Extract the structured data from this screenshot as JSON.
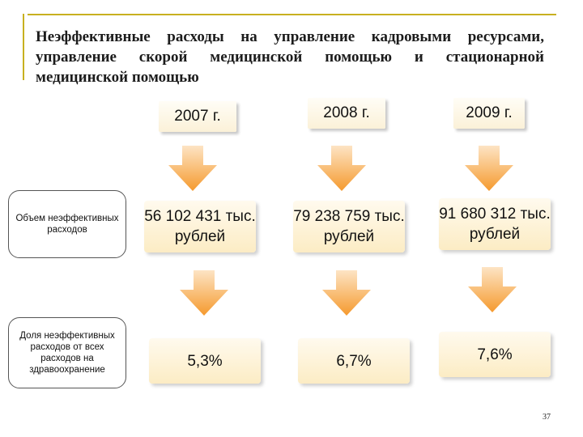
{
  "title": "Неэффективные расходы на управление кадровыми ресурсами, управление скорой медицинской помощью и стационарной медицинской помощью",
  "years": [
    "2007 г.",
    "2008 г.",
    "2009 г."
  ],
  "rows": [
    {
      "label": "Объем неэффективных расходов",
      "values": [
        "56 102 431 тыс. рублей",
        "79 238 759 тыс. рублей",
        "91 680 312 тыс. рублей"
      ]
    },
    {
      "label": "Доля неэффективных расходов от всех расходов на здравоохранение",
      "values": [
        "5,3%",
        "6,7%",
        "7,6%"
      ]
    }
  ],
  "page_number": "37",
  "colors": {
    "arrow_top": "#fde4c4",
    "arrow_bottom": "#f59a2e",
    "frame": "#c8b020",
    "box": "#fcecc4"
  },
  "icons": [
    "down-arrow-icon"
  ]
}
